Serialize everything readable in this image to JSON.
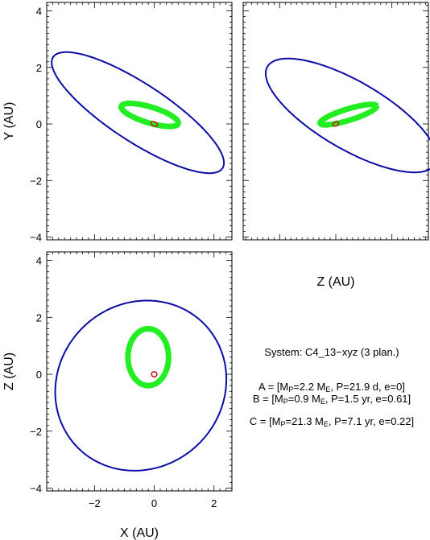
{
  "chart_data": [
    {
      "type": "line",
      "panel": "top-left",
      "xlabel": "",
      "ylabel": "Y (AU)",
      "xlim": [
        -3.6,
        2.6
      ],
      "ylim": [
        -4.1,
        4.3
      ],
      "yticks": [
        -4,
        -2,
        0,
        2,
        4
      ],
      "series": [
        {
          "color": "#0b0ba8",
          "ellipse": {
            "cx": -0.55,
            "cy": 0.4,
            "a": 3.45,
            "b": 1.0,
            "angle_deg": -35
          },
          "width": 2
        },
        {
          "color": "#22ee22",
          "ellipse": {
            "cx": -0.15,
            "cy": 0.32,
            "a": 1.0,
            "b": 0.28,
            "angle_deg": -18
          },
          "width": 7
        },
        {
          "color": "#cc1111",
          "ellipse": {
            "cx": 0.0,
            "cy": 0.0,
            "a": 0.12,
            "b": 0.07,
            "angle_deg": -30
          },
          "width": 1.5
        }
      ]
    },
    {
      "type": "line",
      "panel": "top-right",
      "xlabel": "Z (AU)",
      "ylabel": "",
      "xlim": [
        -3.3,
        3.3
      ],
      "ylim": [
        -4.1,
        4.3
      ],
      "series": [
        {
          "color": "#0b0ba8",
          "ellipse": {
            "cx": 0.55,
            "cy": 0.3,
            "a": 3.45,
            "b": 1.2,
            "angle_deg": -30
          },
          "width": 2
        },
        {
          "color": "#22ee22",
          "ellipse": {
            "cx": 0.45,
            "cy": 0.33,
            "a": 1.05,
            "b": 0.2,
            "angle_deg": 17
          },
          "width": 7
        },
        {
          "color": "#cc1111",
          "ellipse": {
            "cx": 0.0,
            "cy": 0.0,
            "a": 0.11,
            "b": 0.07,
            "angle_deg": 20
          },
          "width": 1.5
        }
      ]
    },
    {
      "type": "line",
      "panel": "bottom-left",
      "xlabel": "X (AU)",
      "ylabel": "Z (AU)",
      "xlim": [
        -3.6,
        2.6
      ],
      "ylim": [
        -4.1,
        4.3
      ],
      "xticks": [
        -2,
        0,
        2
      ],
      "yticks": [
        -4,
        -2,
        0,
        2,
        4
      ],
      "series": [
        {
          "color": "#0b0ba8",
          "ellipse": {
            "cx": -0.45,
            "cy": -0.4,
            "a": 3.05,
            "b": 2.8,
            "angle_deg": 60
          },
          "width": 2
        },
        {
          "color": "#22ee22",
          "ellipse": {
            "cx": -0.2,
            "cy": 0.6,
            "a": 1.0,
            "b": 0.68,
            "angle_deg": 90
          },
          "width": 7
        },
        {
          "color": "#cc1111",
          "ellipse": {
            "cx": 0.0,
            "cy": 0.0,
            "a": 0.09,
            "b": 0.09,
            "angle_deg": 0
          },
          "width": 1.5
        }
      ]
    }
  ],
  "info": {
    "system": "System: C4_13−xyz (3 plan.)",
    "planets": [
      {
        "pre": "A = [M",
        "sub1": "P",
        "mid": "=2.2 M",
        "sub2": "E",
        "post": ", P=21.9 d, e=0]"
      },
      {
        "pre": "B = [M",
        "sub1": "P",
        "mid": "=0.9 M",
        "sub2": "E",
        "post": ", P=1.5 yr, e=0.61]"
      },
      {
        "pre": "C = [M",
        "sub1": "P",
        "mid": "=21.3 M",
        "sub2": "E",
        "post": ", P=7.1 yr, e=0.22]"
      }
    ]
  }
}
